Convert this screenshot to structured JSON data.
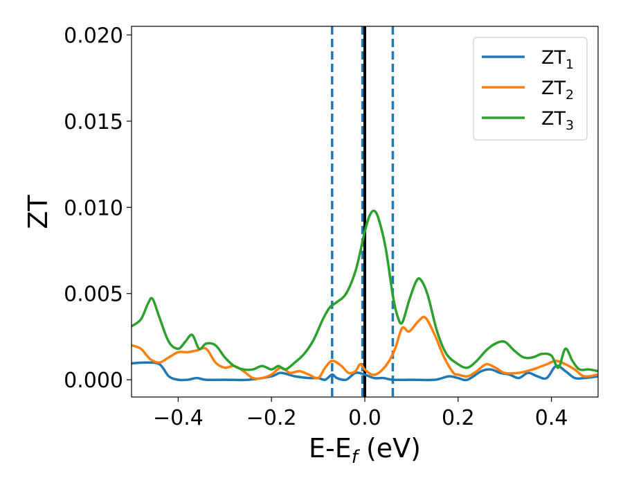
{
  "chart_data": {
    "type": "line",
    "xlabel": "E-E",
    "xlabel_sub": "f",
    "xlabel_suffix": " (eV)",
    "ylabel": "ZT",
    "xlim": [
      -0.5,
      0.5
    ],
    "ylim": [
      -0.001,
      0.0205
    ],
    "xticks": [
      {
        "value": -0.4,
        "label": "−0.4"
      },
      {
        "value": -0.2,
        "label": "−0.2"
      },
      {
        "value": 0.0,
        "label": "0.0"
      },
      {
        "value": 0.2,
        "label": "0.2"
      },
      {
        "value": 0.4,
        "label": "0.4"
      }
    ],
    "yticks": [
      {
        "value": 0.0,
        "label": "0.000"
      },
      {
        "value": 0.005,
        "label": "0.005"
      },
      {
        "value": 0.01,
        "label": "0.010"
      },
      {
        "value": 0.015,
        "label": "0.015"
      },
      {
        "value": 0.02,
        "label": "0.020"
      }
    ],
    "legend_position": "top-right",
    "grid": false,
    "vlines": [
      {
        "x": -0.07,
        "style": "dashed",
        "color": "#1f77b4"
      },
      {
        "x": -0.005,
        "style": "dashed",
        "color": "#1f77b4"
      },
      {
        "x": 0.0,
        "style": "solid",
        "color": "#000000"
      },
      {
        "x": 0.06,
        "style": "dashed",
        "color": "#1f77b4"
      }
    ],
    "series": [
      {
        "name": "ZT",
        "sub": "1",
        "color": "#1f77b4",
        "points": [
          [
            -0.5,
            0.00095
          ],
          [
            -0.47,
            0.001
          ],
          [
            -0.44,
            0.0009
          ],
          [
            -0.42,
            0.0002
          ],
          [
            -0.4,
            0.0
          ],
          [
            -0.38,
            0.0
          ],
          [
            -0.36,
            0.0001
          ],
          [
            -0.34,
            0.0
          ],
          [
            -0.3,
            0.0
          ],
          [
            -0.25,
            0.0
          ],
          [
            -0.2,
            0.0002
          ],
          [
            -0.18,
            0.0004
          ],
          [
            -0.15,
            0.0002
          ],
          [
            -0.12,
            0.0001
          ],
          [
            -0.1,
            0.0001
          ],
          [
            -0.085,
            0.0
          ],
          [
            -0.07,
            0.0003
          ],
          [
            -0.06,
            0.0001
          ],
          [
            -0.04,
            0.0
          ],
          [
            -0.02,
            0.0004
          ],
          [
            0.0,
            0.0003
          ],
          [
            0.02,
            0.0001
          ],
          [
            0.04,
            0.0001
          ],
          [
            0.06,
            0.0
          ],
          [
            0.1,
            0.0
          ],
          [
            0.15,
            0.0
          ],
          [
            0.18,
            0.0002
          ],
          [
            0.2,
            0.0001
          ],
          [
            0.22,
            0.0
          ],
          [
            0.25,
            0.0005
          ],
          [
            0.27,
            0.0006
          ],
          [
            0.29,
            0.0004
          ],
          [
            0.31,
            0.0003
          ],
          [
            0.33,
            0.0001
          ],
          [
            0.35,
            0.0004
          ],
          [
            0.37,
            0.0002
          ],
          [
            0.39,
            0.0001
          ],
          [
            0.41,
            0.0008
          ],
          [
            0.43,
            0.0005
          ],
          [
            0.45,
            0.0001
          ],
          [
            0.47,
            0.0001
          ],
          [
            0.5,
            0.0002
          ]
        ]
      },
      {
        "name": "ZT",
        "sub": "2",
        "color": "#ff7f0e",
        "points": [
          [
            -0.5,
            0.002
          ],
          [
            -0.48,
            0.0018
          ],
          [
            -0.46,
            0.0012
          ],
          [
            -0.44,
            0.001
          ],
          [
            -0.42,
            0.0013
          ],
          [
            -0.4,
            0.0016
          ],
          [
            -0.38,
            0.0016
          ],
          [
            -0.36,
            0.0017
          ],
          [
            -0.34,
            0.0018
          ],
          [
            -0.32,
            0.001
          ],
          [
            -0.3,
            0.0007
          ],
          [
            -0.28,
            0.0008
          ],
          [
            -0.26,
            0.0005
          ],
          [
            -0.24,
            0.0001
          ],
          [
            -0.22,
            0.0001
          ],
          [
            -0.2,
            0.0003
          ],
          [
            -0.18,
            0.0007
          ],
          [
            -0.16,
            0.0004
          ],
          [
            -0.14,
            0.0005
          ],
          [
            -0.12,
            0.0003
          ],
          [
            -0.1,
            0.0001
          ],
          [
            -0.085,
            0.0007
          ],
          [
            -0.07,
            0.0011
          ],
          [
            -0.05,
            0.0008
          ],
          [
            -0.035,
            0.0004
          ],
          [
            -0.02,
            0.0005
          ],
          [
            -0.01,
            0.0009
          ],
          [
            0.0,
            0.0006
          ],
          [
            0.015,
            0.0003
          ],
          [
            0.03,
            0.0004
          ],
          [
            0.05,
            0.001
          ],
          [
            0.065,
            0.0018
          ],
          [
            0.08,
            0.003
          ],
          [
            0.095,
            0.0028
          ],
          [
            0.115,
            0.0034
          ],
          [
            0.13,
            0.0036
          ],
          [
            0.15,
            0.0026
          ],
          [
            0.17,
            0.0013
          ],
          [
            0.19,
            0.0004
          ],
          [
            0.2,
            0.0003
          ],
          [
            0.22,
            0.0002
          ],
          [
            0.24,
            0.0005
          ],
          [
            0.26,
            0.0009
          ],
          [
            0.28,
            0.0007
          ],
          [
            0.3,
            0.0004
          ],
          [
            0.33,
            0.0004
          ],
          [
            0.36,
            0.0006
          ],
          [
            0.39,
            0.0009
          ],
          [
            0.41,
            0.0011
          ],
          [
            0.43,
            0.0009
          ],
          [
            0.45,
            0.0006
          ],
          [
            0.47,
            0.0002
          ],
          [
            0.5,
            0.0003
          ]
        ]
      },
      {
        "name": "ZT",
        "sub": "3",
        "color": "#2ca02c",
        "points": [
          [
            -0.5,
            0.0031
          ],
          [
            -0.48,
            0.0035
          ],
          [
            -0.465,
            0.0044
          ],
          [
            -0.455,
            0.0047
          ],
          [
            -0.44,
            0.0036
          ],
          [
            -0.42,
            0.0022
          ],
          [
            -0.4,
            0.0018
          ],
          [
            -0.385,
            0.0022
          ],
          [
            -0.37,
            0.0026
          ],
          [
            -0.355,
            0.0018
          ],
          [
            -0.34,
            0.0021
          ],
          [
            -0.32,
            0.002
          ],
          [
            -0.3,
            0.0013
          ],
          [
            -0.28,
            0.0008
          ],
          [
            -0.26,
            0.0006
          ],
          [
            -0.24,
            0.0006
          ],
          [
            -0.22,
            0.0008
          ],
          [
            -0.2,
            0.0006
          ],
          [
            -0.185,
            0.0008
          ],
          [
            -0.17,
            0.0006
          ],
          [
            -0.15,
            0.001
          ],
          [
            -0.13,
            0.0015
          ],
          [
            -0.11,
            0.0023
          ],
          [
            -0.09,
            0.0035
          ],
          [
            -0.075,
            0.0042
          ],
          [
            -0.06,
            0.0045
          ],
          [
            -0.04,
            0.005
          ],
          [
            -0.02,
            0.0063
          ],
          [
            -0.005,
            0.008
          ],
          [
            0.0,
            0.0086
          ],
          [
            0.01,
            0.0095
          ],
          [
            0.02,
            0.0098
          ],
          [
            0.03,
            0.0093
          ],
          [
            0.045,
            0.0076
          ],
          [
            0.06,
            0.0049
          ],
          [
            0.07,
            0.0037
          ],
          [
            0.08,
            0.0033
          ],
          [
            0.095,
            0.0046
          ],
          [
            0.11,
            0.0057
          ],
          [
            0.12,
            0.0058
          ],
          [
            0.135,
            0.0049
          ],
          [
            0.155,
            0.0028
          ],
          [
            0.175,
            0.0015
          ],
          [
            0.2,
            0.0009
          ],
          [
            0.22,
            0.0007
          ],
          [
            0.24,
            0.0011
          ],
          [
            0.26,
            0.0017
          ],
          [
            0.28,
            0.0021
          ],
          [
            0.3,
            0.0022
          ],
          [
            0.32,
            0.0017
          ],
          [
            0.34,
            0.0013
          ],
          [
            0.36,
            0.0013
          ],
          [
            0.38,
            0.0015
          ],
          [
            0.4,
            0.0014
          ],
          [
            0.415,
            0.0007
          ],
          [
            0.43,
            0.0018
          ],
          [
            0.445,
            0.0011
          ],
          [
            0.46,
            0.0006
          ],
          [
            0.48,
            0.0006
          ],
          [
            0.5,
            0.0005
          ]
        ]
      }
    ]
  }
}
